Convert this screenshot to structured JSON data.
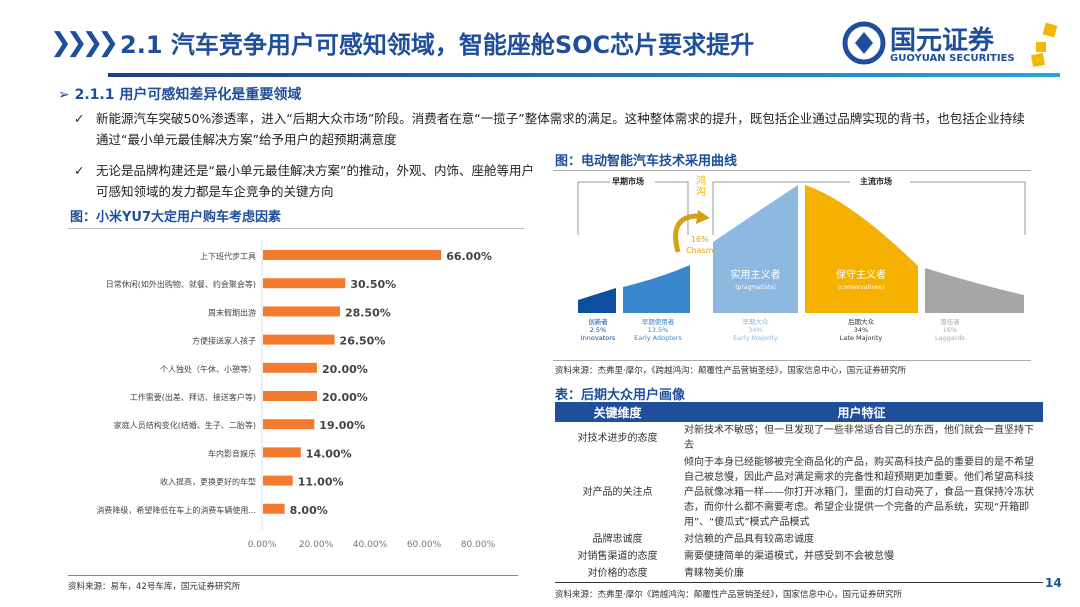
{
  "header": {
    "title": "2.1 汽车竞争用户可感知领域，智能座舱SOC芯片要求提升",
    "chevrons": "❯❯❯❯",
    "logo_name": "国元证券",
    "logo_en": "GUOYUAN SECURITIES"
  },
  "section": {
    "marker": "➢",
    "title": "2.1.1 用户可感知差异化是重要领域"
  },
  "bullets": [
    {
      "mark": "✓",
      "text": "新能源汽车突破50%渗透率，进入“后期大众市场”阶段。消费者在意“一揽子”整体需求的满足。这种整体需求的提升，既包括企业通过品牌实现的背书，也包括企业持续通过“最小单元最佳解决方案”给予用户的超预期满意度"
    },
    {
      "mark": "✓",
      "text": "无论是品牌构建还是“最小单元最佳解决方案”的推动，外观、内饰、座舱等用户可感知领域的发力都是车企竞争的关键方向"
    }
  ],
  "left_figure": {
    "caption": "图：小米YU7大定用户购车考虑因素",
    "source": "资料来源：易车，42号车库，国元证券研究所"
  },
  "chart_data": {
    "type": "bar",
    "orientation": "horizontal",
    "categories": [
      "上下班代步工具",
      "日常休闲(如外出购物、就餐、约会聚会等)",
      "周末假期出游",
      "方便接送家人孩子",
      "个人独处（午休、小憩等）",
      "工作需要(出差、拜访、接送客户等)",
      "家庭人员结构变化(结婚、生子、二胎等)",
      "车内影音娱乐",
      "收入提高，更换更好的车型",
      "消费降级，希望降低在车上的消费车辆使用..."
    ],
    "values": [
      66,
      30.5,
      28.5,
      26.5,
      20,
      20,
      19,
      14,
      11,
      8
    ],
    "value_labels": [
      "66.00%",
      "30.50%",
      "28.50%",
      "26.50%",
      "20.00%",
      "20.00%",
      "19.00%",
      "14.00%",
      "11.00%",
      "8.00%"
    ],
    "xlim": [
      0,
      80
    ],
    "xticks": [
      "0.00%",
      "20.00%",
      "40.00%",
      "60.00%",
      "80.00%"
    ],
    "color": "#f47a30"
  },
  "right_figure": {
    "caption": "图：电动智能汽车技术采用曲线",
    "early_market": "早期市场",
    "chasm": "鸿沟",
    "main_market": "主流市场",
    "chasm_pct": "16%",
    "chasm_en": "Chasm",
    "pragmatists": "实用主义者",
    "pragmatists_en": "(pragmatists)",
    "conservatives": "保守主义者",
    "conservatives_en": "(conservatives)",
    "segments": [
      {
        "cn": "创新者",
        "pct": "2.5%",
        "en": "Innovators",
        "color": "#0d4ea0"
      },
      {
        "cn": "早期使用者",
        "pct": "13.5%",
        "en": "Early Adopters",
        "color": "#3a86cc"
      },
      {
        "cn": "早期大众",
        "pct": "34%",
        "en": "Early Majority",
        "color": "#8db8e0"
      },
      {
        "cn": "后期大众",
        "pct": "34%",
        "en": "Late Majority",
        "color": "#333333"
      },
      {
        "cn": "落伍者",
        "pct": "16%",
        "en": "Laggards",
        "color": "#aaaaaa"
      }
    ],
    "source": "资料来源：杰弗里·摩尔，《跨越鸿沟：颠覆性产品营销圣经》，国家信息中心，国元证券研究所"
  },
  "table": {
    "caption": "表：后期大众用户画像",
    "headers": [
      "关键维度",
      "用户特征"
    ],
    "rows": [
      [
        "对技术进步的态度",
        "对新技术不敏感；但一旦发现了一些非常适合自己的东西，他们就会一直坚持下去"
      ],
      [
        "对产品的关注点",
        "倾向于本身已经能够被完全商品化的产品，购买高科技产品的重要目的是不希望自己被怠慢，因此产品对满足需求的完备性和超预期更加重要。他们希望高科技产品就像冰箱一样——你打开冰箱门，里面的灯自动亮了，食品一直保持冷冻状态，而你什么都不需要考虑。希望企业提供一个完备的产品系统，实现“开箱即用”、“傻瓜式”模式产品模式"
      ],
      [
        "品牌忠诚度",
        "对信赖的产品具有较高忠诚度"
      ],
      [
        "对销售渠道的态度",
        "需要便捷简单的渠道模式，并感受到不会被怠慢"
      ],
      [
        "对价格的态度",
        "青睐物美价廉"
      ]
    ],
    "source": "资料来源：杰弗里·摩尔《跨越鸿沟：颠覆性产品营销圣经》，国家信息中心，国元证券研究所"
  },
  "page_number": "14"
}
